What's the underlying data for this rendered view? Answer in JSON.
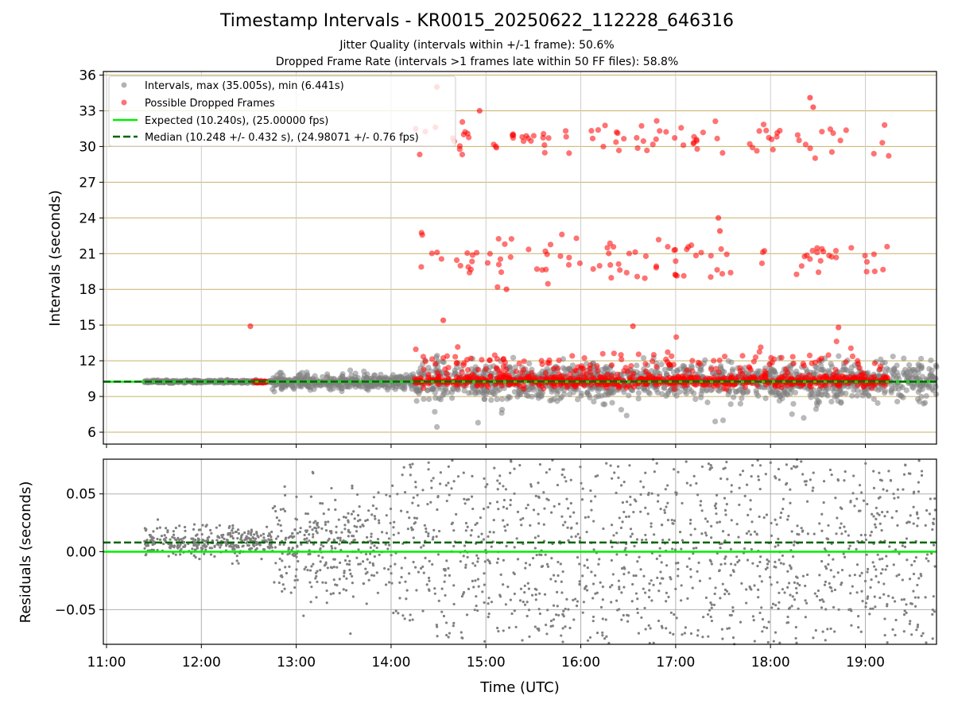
{
  "title": "Timestamp Intervals - KR0015_20250622_112228_646316",
  "subtitle_1": "Jitter Quality (intervals within +/-1 frame): 50.6%",
  "subtitle_2": "Dropped Frame Rate (intervals >1 frames late within 50 FF files): 58.8%",
  "colors": {
    "intervals": "#808080",
    "dropped": "#ff0000",
    "expected": "#00ee00",
    "median": "#006400",
    "grid_top": "#c8b068",
    "grid_bottom": "#b0b0b0"
  },
  "chart_data": [
    {
      "type": "scatter",
      "panel": "top",
      "xlabel": "",
      "ylabel": "Intervals (seconds)",
      "xlim": [
        "10:58",
        "19:45"
      ],
      "ylim": [
        5,
        36.3
      ],
      "yticks": [
        6,
        9,
        12,
        15,
        18,
        21,
        24,
        27,
        30,
        33,
        36
      ],
      "grid": true,
      "legend_position": "top-left",
      "legend": [
        "Intervals, max (35.005s), min (6.441s)",
        "Possible Dropped Frames",
        "Expected (10.240s), (25.00000 fps)",
        "Median (10.248 +/- 0.432 s), (24.98071 +/- 0.76 fps)"
      ],
      "expected_value": 10.24,
      "median_value": 10.248,
      "interval_spread": [
        {
          "from": "11:24",
          "to": "12:45",
          "sigma": 0.05
        },
        {
          "from": "12:45",
          "to": "14:15",
          "sigma": 0.3
        },
        {
          "from": "14:15",
          "to": "19:45",
          "sigma": 0.8
        }
      ],
      "dropped_band_x": [
        "14:15",
        "19:15"
      ],
      "dropped_early": {
        "x": [
          "12:33",
          "12:41"
        ],
        "y": 10.2
      },
      "dropped_clusters": [
        {
          "center": 10.3,
          "count": 700
        },
        {
          "center": 11.8,
          "count": 150
        },
        {
          "center": 20.6,
          "count": 105
        },
        {
          "center": 30.6,
          "count": 95
        }
      ],
      "dropped_outliers": [
        {
          "x": "12:31",
          "y": 14.9
        },
        {
          "x": "14:29",
          "y": 35.0
        },
        {
          "x": "18:25",
          "y": 34.1
        },
        {
          "x": "18:27",
          "y": 33.3
        },
        {
          "x": "14:56",
          "y": 33.0
        },
        {
          "x": "17:27",
          "y": 24.0
        },
        {
          "x": "17:28",
          "y": 22.9
        },
        {
          "x": "15:13",
          "y": 18.0
        },
        {
          "x": "16:33",
          "y": 14.9
        },
        {
          "x": "18:43",
          "y": 14.8
        },
        {
          "x": "14:33",
          "y": 15.4
        }
      ],
      "interval_outliers": [
        {
          "x": "14:29",
          "y": 6.441
        },
        {
          "x": "14:55",
          "y": 6.8
        },
        {
          "x": "17:25",
          "y": 6.9
        },
        {
          "x": "17:30",
          "y": 7.0
        },
        {
          "x": "16:29",
          "y": 7.4
        },
        {
          "x": "18:21",
          "y": 7.2
        }
      ]
    },
    {
      "type": "scatter",
      "panel": "bottom",
      "xlabel": "Time (UTC)",
      "ylabel": "Residuals (seconds)",
      "xlim": [
        "10:58",
        "19:45"
      ],
      "ylim": [
        -0.08,
        0.08
      ],
      "xticks": [
        "11:00",
        "12:00",
        "13:00",
        "14:00",
        "15:00",
        "16:00",
        "17:00",
        "18:00",
        "19:00"
      ],
      "yticks": [
        0.05,
        0.0,
        -0.05
      ],
      "ytick_labels": [
        "0.05",
        "0.00",
        "−0.05"
      ],
      "grid": true,
      "expected_value": 0.0,
      "median_value": 0.008,
      "residual_spread": [
        {
          "from": "11:24",
          "to": "12:45",
          "sigma": 0.006,
          "center": 0.009
        },
        {
          "from": "12:45",
          "to": "14:00",
          "sigma": 0.025,
          "center": 0.005
        },
        {
          "from": "14:00",
          "to": "19:45",
          "sigma": 0.06,
          "center": 0.0
        }
      ]
    }
  ]
}
